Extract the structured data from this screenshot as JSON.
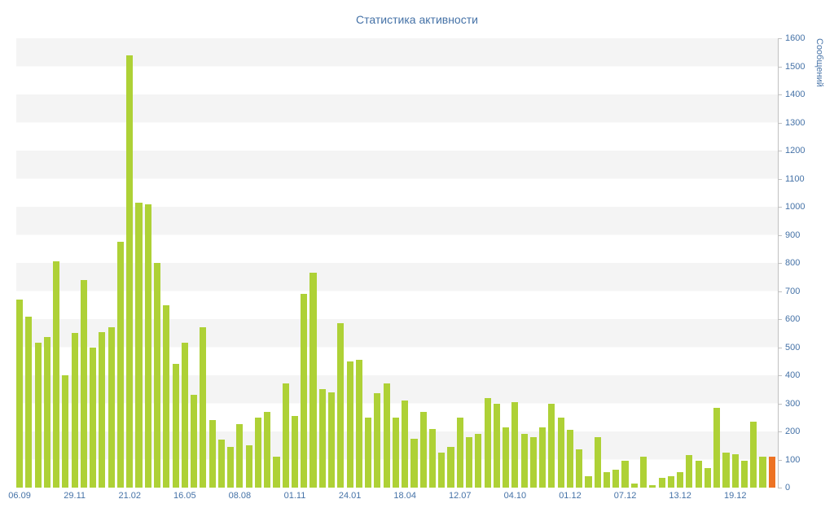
{
  "title": "Статистика активности",
  "y_axis_title": "Сообщений",
  "colors": {
    "bar": "#aed136",
    "bar_current": "#ed7223",
    "axis_text": "#4572a7",
    "axis_line": "#c0c0c0",
    "band": "#f4f4f4",
    "background": "#ffffff"
  },
  "chart_data": {
    "type": "bar",
    "title": "Статистика активности",
    "xlabel": "",
    "ylabel": "Сообщений",
    "ylim": [
      0,
      1600
    ],
    "y_tick_interval": 100,
    "y_ticks": [
      0,
      100,
      200,
      300,
      400,
      500,
      600,
      700,
      800,
      900,
      1000,
      1100,
      1200,
      1300,
      1400,
      1500,
      1600
    ],
    "grid": "alternating-horizontal-bands",
    "legend_position": "none",
    "x_tick_labels": [
      "06.09",
      "29.11",
      "21.02",
      "16.05",
      "08.08",
      "01.11",
      "24.01",
      "18.04",
      "12.07",
      "04.10",
      "01.12",
      "07.12",
      "13.12",
      "19.12"
    ],
    "x_tick_every": 6,
    "values": [
      670,
      610,
      515,
      535,
      805,
      400,
      550,
      740,
      500,
      555,
      570,
      875,
      1540,
      1015,
      1010,
      800,
      650,
      440,
      515,
      330,
      570,
      240,
      170,
      145,
      225,
      150,
      250,
      270,
      110,
      370,
      255,
      690,
      765,
      350,
      340,
      585,
      450,
      455,
      250,
      335,
      370,
      250,
      310,
      175,
      270,
      210,
      125,
      145,
      250,
      180,
      190,
      320,
      300,
      215,
      305,
      190,
      180,
      215,
      300,
      250,
      205,
      135,
      40,
      180,
      55,
      65,
      95,
      15,
      110,
      10,
      35,
      40,
      55,
      115,
      95,
      70,
      285,
      125,
      120,
      95,
      235,
      110,
      110
    ],
    "highlight_last_bar": true,
    "series_name": "Сообщений"
  }
}
